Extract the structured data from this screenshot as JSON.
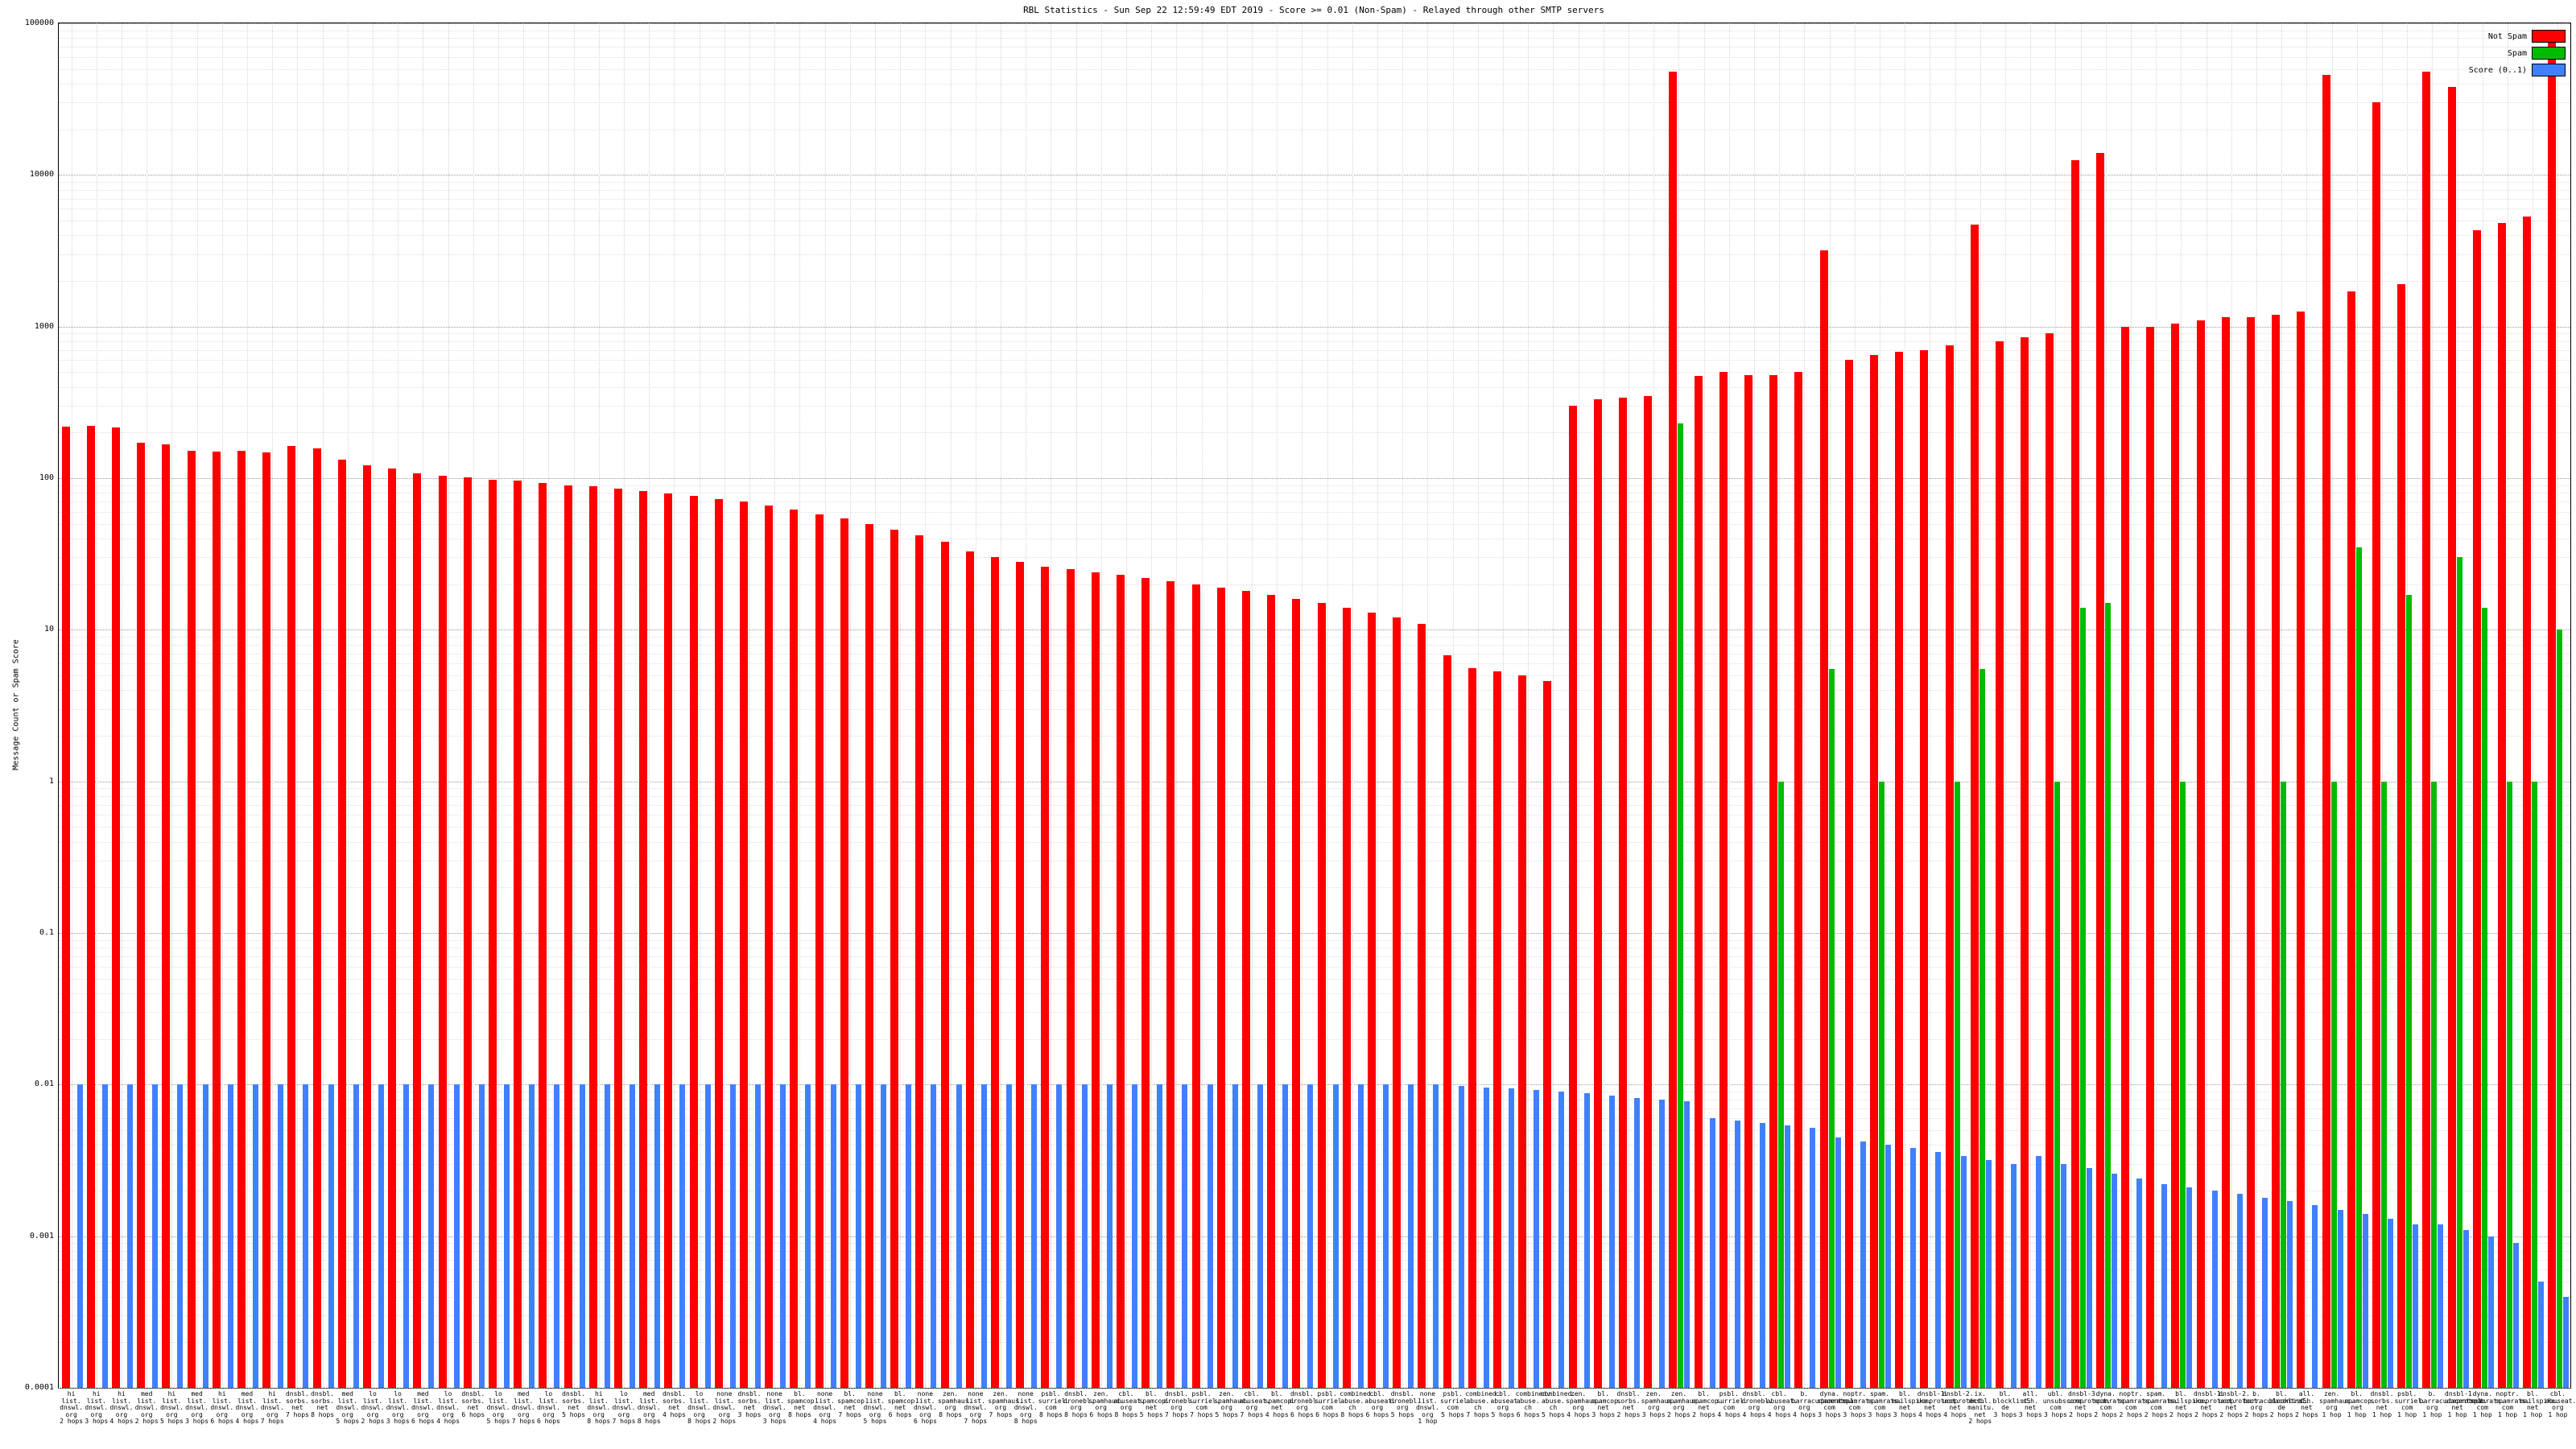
{
  "page": {
    "title": "RBL Statistics - Sun Sep 22 12:59:49 EDT 2019 - Score >= 0.01 (Non-Spam) - Relayed through other SMTP servers"
  },
  "chart_data": {
    "type": "bar",
    "title": "RBL Statistics - Sun Sep 22 12:59:49 EDT 2019 - Score >= 0.01 (Non-Spam) - Relayed through other SMTP servers",
    "ylabel": "Message Count or Spam Score",
    "xlabel": "",
    "y_scale": "log",
    "ylim": [
      0.0001,
      100000
    ],
    "y_ticks": [
      "0.0001",
      "0.001",
      "0.01",
      "0.1",
      "1",
      "10",
      "100",
      "1000",
      "10000",
      "100000"
    ],
    "grid": true,
    "legend_position": "top-right",
    "colors": {
      "not_spam": "#ff0000",
      "spam": "#00bb00",
      "score": "#4080ff"
    },
    "categories": [
      "hi list.dnswl.org 2 hops",
      "hi list.dnswl.org 3 hops",
      "hi list.dnswl.org 4 hops",
      "med list.dnswl.org 2 hops",
      "hi list.dnswl.org 5 hops",
      "med list.dnswl.org 3 hops",
      "hi list.dnswl.org 6 hops",
      "med list.dnswl.org 4 hops",
      "hi list.dnswl.org 7 hops",
      "dnsbl.sorbs.net 7 hops",
      "dnsbl.sorbs.net 8 hops",
      "med list.dnswl.org 5 hops",
      "lo list.dnswl.org 2 hops",
      "lo list.dnswl.org 3 hops",
      "med list.dnswl.org 6 hops",
      "lo list.dnswl.org 4 hops",
      "dnsbl.sorbs.net 6 hops",
      "lo list.dnswl.org 5 hops",
      "med list.dnswl.org 7 hops",
      "lo list.dnswl.org 6 hops",
      "dnsbl.sorbs.net 5 hops",
      "hi list.dnswl.org 8 hops",
      "lo list.dnswl.org 7 hops",
      "med list.dnswl.org 8 hops",
      "dnsbl.sorbs.net 4 hops",
      "lo list.dnswl.org 8 hops",
      "none list.dnswl.org 2 hops",
      "dnsbl.sorbs.net 3 hops",
      "none list.dnswl.org 3 hops",
      "bl.spamcop.net 8 hops",
      "none list.dnswl.org 4 hops",
      "bl.spamcop.net 7 hops",
      "none list.dnswl.org 5 hops",
      "bl.spamcop.net 6 hops",
      "none list.dnswl.org 6 hops",
      "zen.spamhaus.org 8 hops",
      "none list.dnswl.org 7 hops",
      "zen.spamhaus.org 7 hops",
      "none list.dnswl.org 8 hops",
      "psbl.surriel.com 8 hops",
      "dnsbl.dronebl.org 8 hops",
      "zen.spamhaus.org 6 hops",
      "cbl.abuseat.org 8 hops",
      "bl.spamcop.net 5 hops",
      "dnsbl.dronebl.org 7 hops",
      "psbl.surriel.com 7 hops",
      "zen.spamhaus.org 5 hops",
      "cbl.abuseat.org 7 hops",
      "bl.spamcop.net 4 hops",
      "dnsbl.dronebl.org 6 hops",
      "psbl.surriel.com 6 hops",
      "combined.abuse.ch 8 hops",
      "cbl.abuseat.org 6 hops",
      "dnsbl.dronebl.org 5 hops",
      "none list.dnswl.org 1 hop",
      "psbl.surriel.com 5 hops",
      "combined.abuse.ch 7 hops",
      "cbl.abuseat.org 5 hops",
      "combined.abuse.ch 6 hops",
      "combined.abuse.ch 5 hops",
      "zen.spamhaus.org 4 hops",
      "bl.spamcop.net 3 hops",
      "dnsbl.sorbs.net 2 hops",
      "zen.spamhaus.org 3 hops",
      "zen.spamhaus.org 2 hops",
      "bl.spamcop.net 2 hops",
      "psbl.surriel.com 4 hops",
      "dnsbl.dronebl.org 4 hops",
      "cbl.abuseat.org 4 hops",
      "b.barracudacentral.org 4 hops",
      "dyna.spamrats.com 3 hops",
      "noptr.spamrats.com 3 hops",
      "spam.spamrats.com 3 hops",
      "bl.mailspike.net 3 hops",
      "dnsbl-1.uceprotect.net 4 hops",
      "dnsbl-2.uceprotect.net 4 hops",
      "ix.dnsbl.manitu.net 2 hops",
      "bl.blocklist.de 3 hops",
      "all.s5h.net 3 hops",
      "ubl.unsubscore.com 3 hops",
      "dnsbl-3.uceprotect.net 2 hops",
      "dyna.spamrats.com 2 hops",
      "noptr.spamrats.com 2 hops",
      "spam.spamrats.com 2 hops",
      "bl.mailspike.net 2 hops",
      "dnsbl-1.uceprotect.net 2 hops",
      "dnsbl-2.uceprotect.net 2 hops",
      "b.barracudacentral.org 2 hops",
      "bl.blocklist.de 2 hops",
      "all.s5h.net 2 hops",
      "zen.spamhaus.org 1 hop",
      "bl.spamcop.net 1 hop",
      "dnsbl.sorbs.net 1 hop",
      "psbl.surriel.com 1 hop",
      "b.barracudacentral.org 1 hop",
      "dnsbl-1.uceprotect.net 1 hop",
      "dyna.spamrats.com 1 hop",
      "noptr.spamrats.com 1 hop",
      "bl.mailspike.net 1 hop",
      "cbl.abuseat.org 1 hop"
    ],
    "series": [
      {
        "name": "Not Spam",
        "color": "#ff0000",
        "values": [
          220,
          222,
          215,
          172,
          168,
          152,
          150,
          152,
          148,
          163,
          158,
          132,
          122,
          116,
          108,
          104,
          101,
          98,
          96,
          93,
          90,
          88,
          85,
          82,
          79,
          76,
          73,
          70,
          66,
          62,
          58,
          54,
          50,
          46,
          42,
          38,
          33,
          30,
          28,
          26,
          25,
          24,
          23,
          22,
          21,
          20,
          19,
          18,
          17,
          16,
          15,
          14,
          13,
          12,
          11,
          6.8,
          5.6,
          5.3,
          5.0,
          4.6,
          300,
          330,
          340,
          350,
          48000,
          470,
          500,
          480,
          480,
          500,
          3200,
          600,
          650,
          680,
          700,
          750,
          4700,
          800,
          850,
          900,
          12500,
          14000,
          1000,
          1000,
          1050,
          1100,
          1150,
          1150,
          1200,
          1250,
          46000,
          1700,
          30000,
          1900,
          48000,
          38000,
          4300,
          4800,
          5300,
          80000
        ]
      },
      {
        "name": "Spam",
        "color": "#00bb00",
        "values": [
          0,
          0,
          0,
          0,
          0,
          0,
          0,
          0,
          0,
          0,
          0,
          0,
          0,
          0,
          0,
          0,
          0,
          0,
          0,
          0,
          0,
          0,
          0,
          0,
          0,
          0,
          0,
          0,
          0,
          0,
          0,
          0,
          0,
          0,
          0,
          0,
          0,
          0,
          0,
          0,
          0,
          0,
          0,
          0,
          0,
          0,
          0,
          0,
          0,
          0,
          0,
          0,
          0,
          0,
          0,
          0,
          0,
          0,
          0,
          0,
          0,
          0,
          0,
          0,
          230,
          0,
          0,
          0,
          1,
          0,
          5.5,
          0,
          1,
          0,
          0,
          1,
          5.5,
          0,
          0,
          1,
          14,
          15,
          0,
          0,
          1,
          0,
          0,
          0,
          1,
          0,
          1,
          35,
          1,
          17,
          1,
          30,
          14,
          1,
          1,
          10
        ]
      },
      {
        "name": "Score (0..1)",
        "color": "#4080ff",
        "values": [
          0.01,
          0.01,
          0.01,
          0.01,
          0.01,
          0.01,
          0.01,
          0.01,
          0.01,
          0.01,
          0.01,
          0.01,
          0.01,
          0.01,
          0.01,
          0.01,
          0.01,
          0.01,
          0.01,
          0.01,
          0.01,
          0.01,
          0.01,
          0.01,
          0.01,
          0.01,
          0.01,
          0.01,
          0.01,
          0.01,
          0.01,
          0.01,
          0.01,
          0.01,
          0.01,
          0.01,
          0.01,
          0.01,
          0.01,
          0.01,
          0.01,
          0.01,
          0.01,
          0.01,
          0.01,
          0.01,
          0.01,
          0.01,
          0.01,
          0.01,
          0.01,
          0.01,
          0.01,
          0.01,
          0.01,
          0.0098,
          0.0096,
          0.0094,
          0.0092,
          0.009,
          0.0088,
          0.0085,
          0.0082,
          0.008,
          0.0078,
          0.006,
          0.0058,
          0.0056,
          0.0054,
          0.0052,
          0.0045,
          0.0042,
          0.004,
          0.0038,
          0.0036,
          0.0034,
          0.0032,
          0.003,
          0.0034,
          0.003,
          0.0028,
          0.0026,
          0.0024,
          0.0022,
          0.0021,
          0.002,
          0.0019,
          0.0018,
          0.0017,
          0.0016,
          0.0015,
          0.0014,
          0.0013,
          0.0012,
          0.0012,
          0.0011,
          0.001,
          0.0009,
          0.0005,
          0.0004
        ]
      }
    ],
    "legend": [
      {
        "label": "Not Spam",
        "color": "#ff0000"
      },
      {
        "label": "Spam",
        "color": "#00bb00"
      },
      {
        "label": "Score (0..1)",
        "color": "#4080ff"
      }
    ]
  }
}
